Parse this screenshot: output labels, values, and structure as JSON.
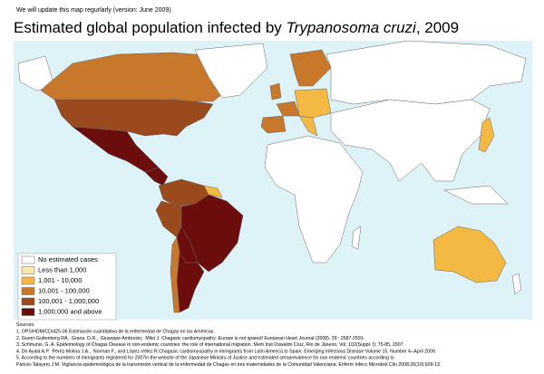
{
  "header": {
    "note": "We will update this map regurlarly (version: June 2009)",
    "title": {
      "prefix": "Estimated global population infected by ",
      "italic": "Trypanosoma cruzi",
      "suffix": ", 2009"
    }
  },
  "legend": {
    "items": [
      {
        "label": "No estimated cases",
        "color": "#ffffff"
      },
      {
        "label": "Less than 1,000",
        "color": "#fde9a9"
      },
      {
        "label": "1,001 - 10,000",
        "color": "#f4b942"
      },
      {
        "label": "10,001 - 100,000",
        "color": "#c8782a"
      },
      {
        "label": "100,001 - 1,000,000",
        "color": "#9a4a1c"
      },
      {
        "label": "1,000,000 and above",
        "color": "#6b0d0d"
      }
    ]
  },
  "sources": {
    "heading": "Sources:",
    "lines": [
      "1. OPS/HDM/CD/425-06 Estimación cuantitativa de la enfermedad de Chagas en las Américas.",
      "2. Guerri-Guttenberg RA,  Grana  D.R.,  Giuseppe Ambrosio,  Milei J. Chagasic cardiomyopathy: Europe is not spared! European Heart Journal (2008). 29 : 2587-2591.",
      "3. Schmunis, G. A. Epidemiology of Chagas Disease in non-endemic countries: the role of international migration. Mem Inst Oswaldo Cruz, Rio de Janeiro, Vol. 102(Suppl. I): 75-85, 2007.",
      "4. De Ayala A.P.  Pérez-Molina J.A.,  Norman F., and López-Vélez R.Chagasic cardiomyopathy in immigrants from Latin America to Spain. Emerging Infectious Disease Volume 15. Number 4--April 2009.",
      "5. According to the numbers of immigrants registered for 2007in the website of the Japanese Ministry of Justice and estimated seroprevalence for non endemic countries according to",
      "Paricio-Talayero J.M. Vigilancia epidemiológica de la transmisión vertical de la enfermedad de Chagas en tres maternidades de la Comunidad Valenciana. Enferm Infecc Microbiol Clin 2008;26(10):609-13."
    ]
  }
}
